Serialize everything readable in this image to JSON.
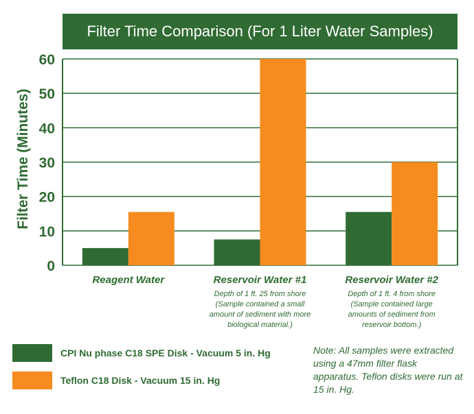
{
  "chart_data": {
    "type": "bar",
    "title": "Filter Time Comparison (For 1 Liter Water Samples)",
    "ylabel": "Filter Time (Minutes)",
    "xlabel": "",
    "ylim": [
      0,
      60
    ],
    "yticks": [
      0,
      10,
      20,
      30,
      40,
      50,
      60
    ],
    "grid": true,
    "categories": [
      "Reagent Water",
      "Reservoir Water #1",
      "Reservoir Water #2"
    ],
    "category_notes": [
      [],
      [
        "Depth of 1 ft. 25 from shore",
        "(Sample contained a small",
        "amount of sediment with more",
        "biological material.)"
      ],
      [
        "Depth of 1 ft. 4  from shore",
        "(Sample contained large",
        "amounts of sediment from",
        "reservoir bottom.)"
      ]
    ],
    "series": [
      {
        "name": "CPI Nu phase C18 SPE Disk - Vacuum 5 in. Hg",
        "color": "#2f6b33",
        "values": [
          5,
          7.5,
          15.5
        ]
      },
      {
        "name": "Teflon C18 Disk - Vacuum 15 in. Hg",
        "color": "#f68b1f",
        "values": [
          15.5,
          60,
          30
        ]
      }
    ],
    "legend_position": "bottom-left",
    "note": "Note: All samples were extracted using a 47mm filter flask apparatus. Teflon disks were run at 15 in. Hg."
  }
}
